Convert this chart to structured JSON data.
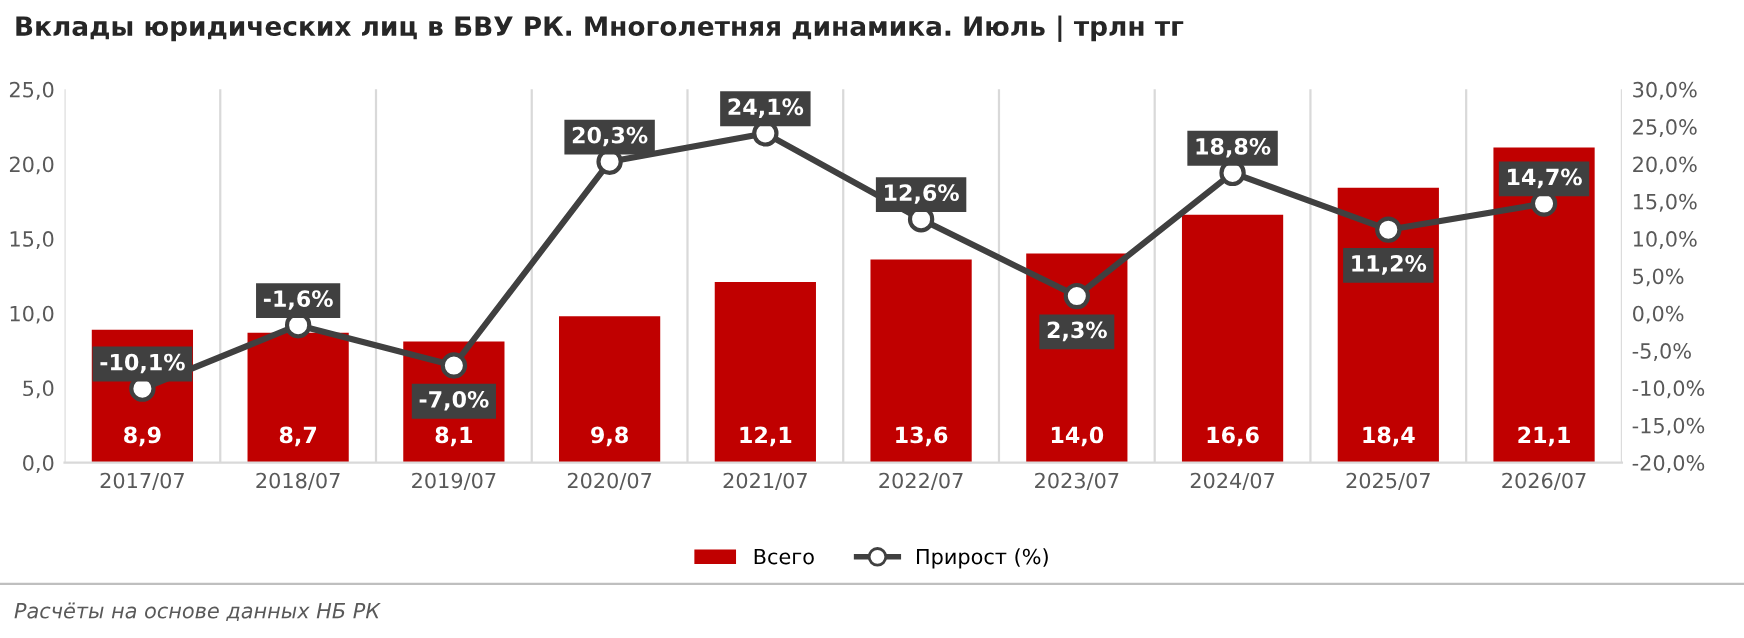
{
  "chart_data": {
    "type": "bar",
    "title": "Вклады юридических лиц в БВУ РК. Многолетняя динамика. Июль | трлн тг",
    "categories": [
      "2017/07",
      "2018/07",
      "2019/07",
      "2020/07",
      "2021/07",
      "2022/07",
      "2023/07",
      "2024/07",
      "2025/07",
      "2026/07"
    ],
    "series": [
      {
        "name": "Всего",
        "color": "#c00000",
        "values": [
          8.9,
          8.7,
          8.1,
          9.8,
          12.1,
          13.6,
          14.0,
          16.6,
          18.4,
          21.1
        ],
        "value_labels": [
          "8,9",
          "8,7",
          "8,1",
          "9,8",
          "12,1",
          "13,6",
          "14,0",
          "16,6",
          "18,4",
          "21,1"
        ]
      },
      {
        "name": "Прирост (%)",
        "type": "line",
        "axis": "y2",
        "color": "#404040",
        "marker": "circle",
        "values": [
          -10.1,
          -1.6,
          -7.0,
          20.3,
          24.1,
          12.6,
          2.3,
          18.8,
          11.2,
          14.7
        ],
        "value_labels": [
          "-10,1%",
          "-1,6%",
          "-7,0%",
          "20,3%",
          "24,1%",
          "12,6%",
          "2,3%",
          "18,8%",
          "11,2%",
          "14,7%"
        ]
      }
    ],
    "ylim": [
      0,
      25
    ],
    "yticks": [
      {
        "value": 0,
        "label": "0,0"
      },
      {
        "value": 5,
        "label": "5,0"
      },
      {
        "value": 10,
        "label": "10,0"
      },
      {
        "value": 15,
        "label": "15,0"
      },
      {
        "value": 20,
        "label": "20,0"
      },
      {
        "value": 25,
        "label": "25,0"
      }
    ],
    "y2lim": [
      -20,
      30
    ],
    "y2ticks": [
      {
        "value": -20,
        "label": "-20,0%"
      },
      {
        "value": -15,
        "label": "-15,0%"
      },
      {
        "value": -10,
        "label": "-10,0%"
      },
      {
        "value": -5,
        "label": "-5,0%"
      },
      {
        "value": 0,
        "label": "0,0%"
      },
      {
        "value": 5,
        "label": "5,0%"
      },
      {
        "value": 10,
        "label": "10,0%"
      },
      {
        "value": 15,
        "label": "15,0%"
      },
      {
        "value": 20,
        "label": "20,0%"
      },
      {
        "value": 25,
        "label": "25,0%"
      },
      {
        "value": 30,
        "label": "30,0%"
      }
    ],
    "grid": "x",
    "legend": "bottom",
    "annotations": [
      "Расчёты на основе данных НБ РК"
    ]
  }
}
